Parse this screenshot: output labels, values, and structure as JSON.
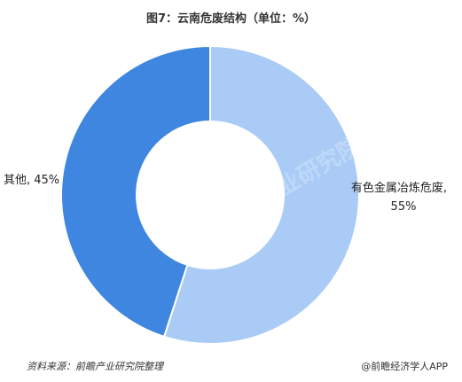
{
  "chart_data": {
    "type": "pie",
    "donut": true,
    "title": "图7：云南危废结构（单位：%）",
    "slices": [
      {
        "label": "有色金属冶炼危废,",
        "value_label": "55%",
        "value": 55,
        "color": "#a9cbf6"
      },
      {
        "label": "其他,",
        "value_label": "45%",
        "value": 45,
        "color": "#3f86e0"
      }
    ]
  },
  "footer": {
    "source": "资料来源：前瞻产业研究院整理",
    "brand": "@前瞻经济学人APP"
  },
  "watermark_text": "前瞻产业研究院"
}
